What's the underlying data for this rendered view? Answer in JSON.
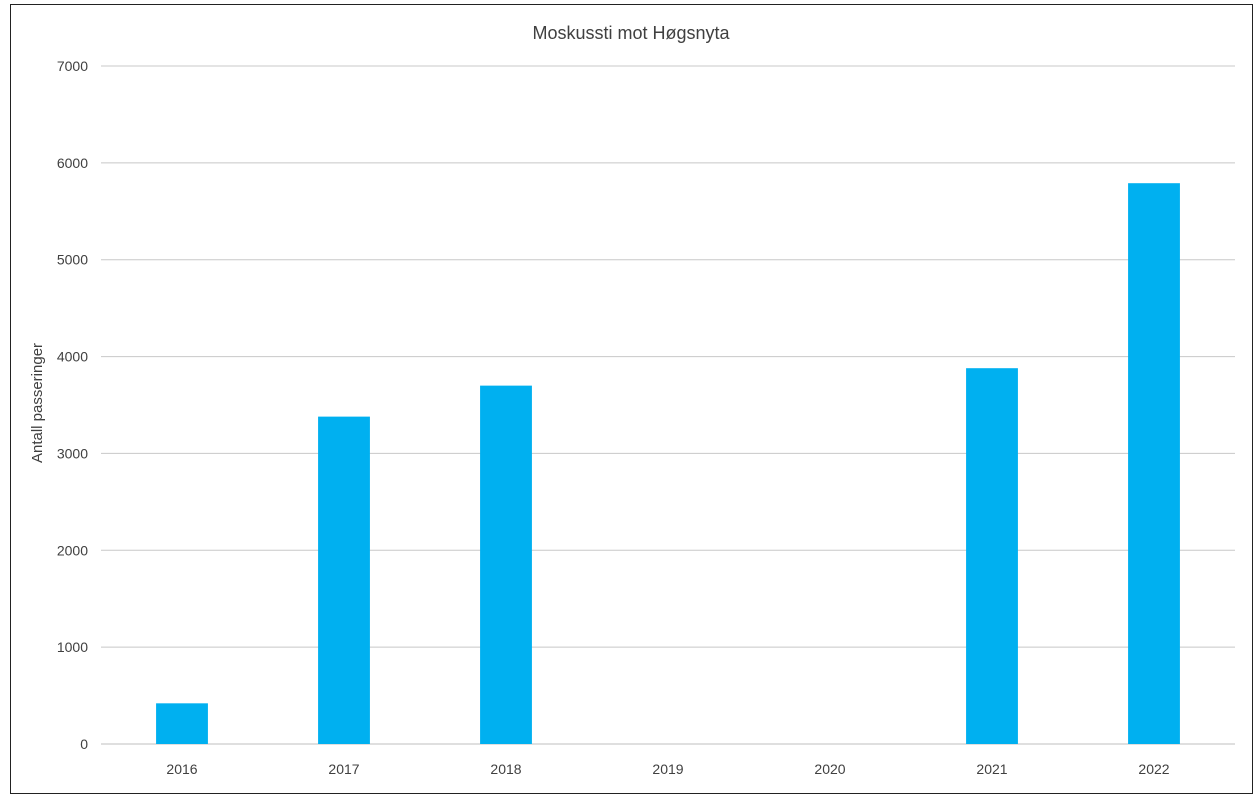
{
  "chart_data": {
    "type": "bar",
    "title": "Moskussti mot Høgsnyta",
    "xlabel": "",
    "ylabel": "Antall passeringer",
    "categories": [
      "2016",
      "2017",
      "2018",
      "2019",
      "2020",
      "2021",
      "2022"
    ],
    "values": [
      420,
      3380,
      3700,
      0,
      0,
      3880,
      5790
    ],
    "ylim": [
      0,
      7000
    ],
    "yticks": [
      "0",
      "1000",
      "2000",
      "3000",
      "4000",
      "5000",
      "6000",
      "7000"
    ],
    "grid": true,
    "legend": "none",
    "bar_color": "#00B0F0"
  }
}
